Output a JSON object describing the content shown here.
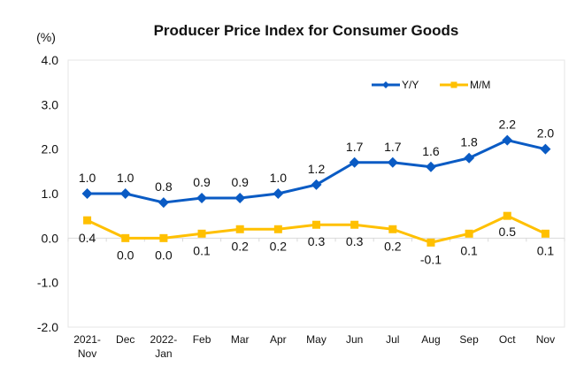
{
  "chart_data": {
    "type": "line",
    "title": "Producer Price Index for Consumer Goods",
    "ylabel": "(%)",
    "xlabel": "",
    "ylim": [
      -2.0,
      4.0
    ],
    "yticks": [
      "4.0",
      "3.0",
      "2.0",
      "1.0",
      "0.0",
      "-1.0",
      "-2.0"
    ],
    "ytick_values": [
      4.0,
      3.0,
      2.0,
      1.0,
      0.0,
      -1.0,
      -2.0
    ],
    "categories": [
      [
        "2021-",
        "Nov"
      ],
      [
        "Dec"
      ],
      [
        "2022-",
        "Jan"
      ],
      [
        "Feb"
      ],
      [
        "Mar"
      ],
      [
        "Apr"
      ],
      [
        "May"
      ],
      [
        "Jun"
      ],
      [
        "Jul"
      ],
      [
        "Aug"
      ],
      [
        "Sep"
      ],
      [
        "Oct"
      ],
      [
        "Nov"
      ]
    ],
    "legend_position": "top-right",
    "grid": false,
    "series": [
      {
        "name": "Y/Y",
        "color": "#0a5bc4",
        "marker": "diamond",
        "values": [
          1.0,
          1.0,
          0.8,
          0.9,
          0.9,
          1.0,
          1.2,
          1.7,
          1.7,
          1.6,
          1.8,
          2.2,
          2.0
        ],
        "labels": [
          "1.0",
          "1.0",
          "0.8",
          "0.9",
          "0.9",
          "1.0",
          "1.2",
          "1.7",
          "1.7",
          "1.6",
          "1.8",
          "2.2",
          "2.0"
        ],
        "label_position": "above"
      },
      {
        "name": "M/M",
        "color": "#ffc000",
        "marker": "square",
        "values": [
          0.4,
          0.0,
          0.0,
          0.1,
          0.2,
          0.2,
          0.3,
          0.3,
          0.2,
          -0.1,
          0.1,
          0.5,
          0.1
        ],
        "labels": [
          "0.4",
          "0.0",
          "0.0",
          "0.1",
          "0.2",
          "0.2",
          "0.3",
          "0.3",
          "0.2",
          "-0.1",
          "0.1",
          "0.5",
          "0.1"
        ],
        "label_position": "below"
      }
    ]
  }
}
